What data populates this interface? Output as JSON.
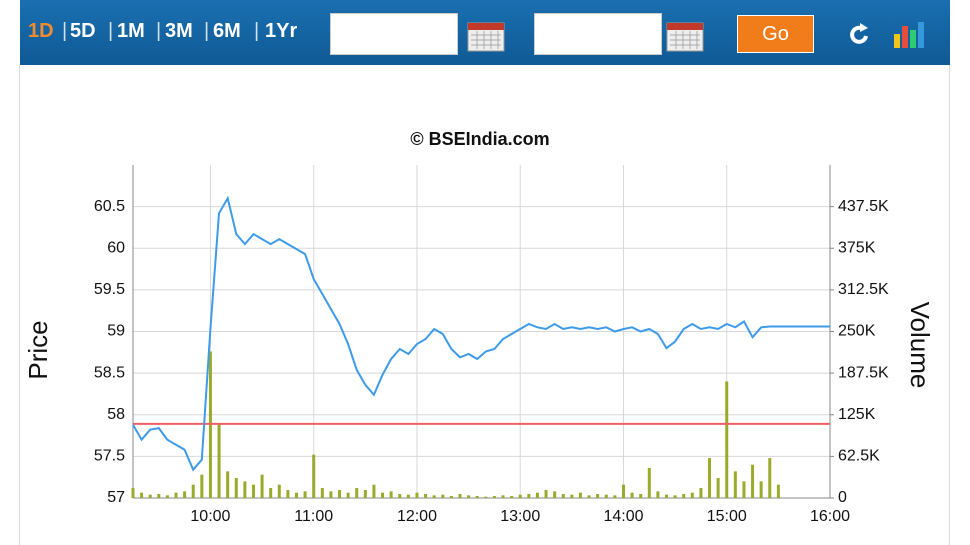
{
  "toolbar": {
    "ranges": [
      "1D",
      "5D",
      "1M",
      "3M",
      "6M",
      "1Yr"
    ],
    "go": "Go"
  },
  "chart_data": {
    "type": "line",
    "title": "© BSEIndia.com",
    "x": [
      "09:15",
      "09:20",
      "09:25",
      "09:30",
      "09:35",
      "09:40",
      "09:45",
      "09:50",
      "09:55",
      "10:00",
      "10:05",
      "10:10",
      "10:15",
      "10:20",
      "10:25",
      "10:30",
      "10:35",
      "10:40",
      "10:45",
      "10:50",
      "10:55",
      "11:00",
      "11:05",
      "11:10",
      "11:15",
      "11:20",
      "11:25",
      "11:30",
      "11:35",
      "11:40",
      "11:45",
      "11:50",
      "11:55",
      "12:00",
      "12:05",
      "12:10",
      "12:15",
      "12:20",
      "12:25",
      "12:30",
      "12:35",
      "12:40",
      "12:45",
      "12:50",
      "12:55",
      "13:00",
      "13:05",
      "13:10",
      "13:15",
      "13:20",
      "13:25",
      "13:30",
      "13:35",
      "13:40",
      "13:45",
      "13:50",
      "13:55",
      "14:00",
      "14:05",
      "14:10",
      "14:15",
      "14:20",
      "14:25",
      "14:30",
      "14:35",
      "14:40",
      "14:45",
      "14:50",
      "14:55",
      "15:00",
      "15:05",
      "15:10",
      "15:15",
      "15:20",
      "15:25",
      "15:30",
      "16:00"
    ],
    "series": [
      {
        "name": "Price",
        "color": "#3d9be9",
        "values": [
          57.88,
          57.7,
          57.82,
          57.84,
          57.7,
          57.64,
          57.58,
          57.34,
          57.46,
          59.03,
          60.42,
          60.6,
          60.17,
          60.05,
          60.17,
          60.11,
          60.05,
          60.11,
          60.05,
          59.99,
          59.93,
          59.63,
          59.45,
          59.27,
          59.09,
          58.85,
          58.54,
          58.36,
          58.24,
          58.48,
          58.67,
          58.79,
          58.73,
          58.85,
          58.91,
          59.03,
          58.97,
          58.79,
          58.69,
          58.73,
          58.67,
          58.76,
          58.79,
          58.91,
          58.97,
          59.03,
          59.09,
          59.05,
          59.03,
          59.09,
          59.03,
          59.05,
          59.03,
          59.05,
          59.03,
          59.05,
          59.0,
          59.03,
          59.05,
          59.0,
          59.03,
          58.97,
          58.8,
          58.88,
          59.03,
          59.09,
          59.03,
          59.05,
          59.03,
          59.09,
          59.05,
          59.12,
          58.93,
          59.05,
          59.06,
          59.06,
          59.06
        ]
      },
      {
        "name": "Volume",
        "color": "#9aab2c",
        "axis": "y2",
        "values": [
          15000,
          8000,
          5000,
          6000,
          4000,
          8000,
          10000,
          20000,
          35000,
          220000,
          110000,
          40000,
          30000,
          25000,
          20000,
          35000,
          15000,
          20000,
          12000,
          8000,
          10000,
          65000,
          15000,
          10000,
          12000,
          8000,
          15000,
          12000,
          20000,
          8000,
          10000,
          6000,
          5000,
          8000,
          6000,
          4000,
          5000,
          3000,
          6000,
          4000,
          3000,
          2000,
          3000,
          4000,
          3000,
          5000,
          6000,
          8000,
          12000,
          10000,
          6000,
          5000,
          8000,
          4000,
          6000,
          5000,
          4000,
          20000,
          8000,
          6000,
          45000,
          10000,
          5000,
          4000,
          6000,
          8000,
          15000,
          60000,
          30000,
          175000,
          40000,
          25000,
          50000,
          25000,
          60000,
          20000,
          null
        ]
      }
    ],
    "reference_line": {
      "value": 57.89,
      "color": "#f06060"
    },
    "xlim": [
      "09:15",
      "16:00"
    ],
    "xticks": [
      "10:00",
      "11:00",
      "12:00",
      "13:00",
      "14:00",
      "15:00",
      "16:00"
    ],
    "ylim": [
      57,
      61
    ],
    "yticks": [
      57,
      57.5,
      58,
      58.5,
      59,
      59.5,
      60,
      60.5
    ],
    "y2lim": [
      0,
      500000
    ],
    "y2ticks": [
      0,
      {
        "value": 62500,
        "label": "62.5K"
      },
      {
        "value": 125000,
        "label": "125K"
      },
      {
        "value": 187500,
        "label": "187.5K"
      },
      {
        "value": 250000,
        "label": "250K"
      },
      {
        "value": 312500,
        "label": "312.5K"
      },
      {
        "value": 375000,
        "label": "375K"
      },
      {
        "value": 437500,
        "label": "437.5K"
      }
    ],
    "grid": true
  }
}
